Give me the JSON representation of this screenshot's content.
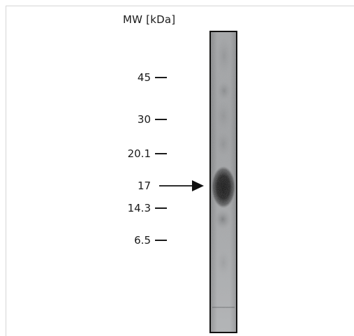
{
  "header": {
    "mw_label": "MW [kDa]"
  },
  "markers": [
    {
      "label": "45"
    },
    {
      "label": "30"
    },
    {
      "label": "20.1"
    },
    {
      "label": "14.3"
    },
    {
      "label": "6.5"
    }
  ],
  "arrow": {
    "label": "17"
  },
  "colors": {
    "ink": "#1a1a1a",
    "lane_background": "#a9abad",
    "band": "#141414"
  }
}
